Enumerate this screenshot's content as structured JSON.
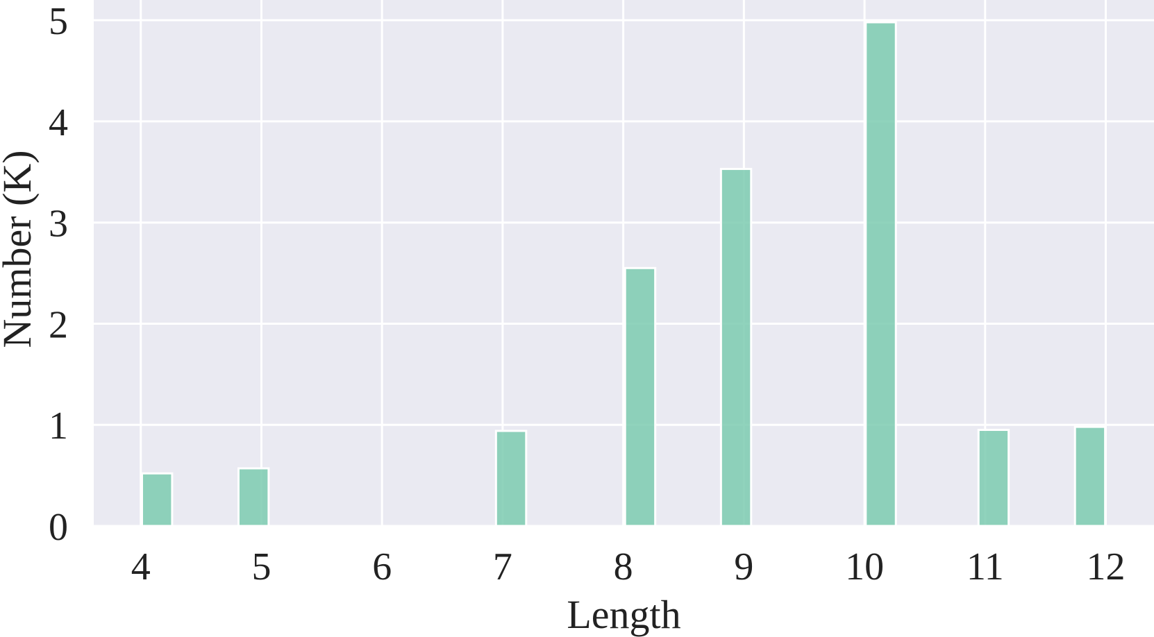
{
  "chart_data": {
    "type": "bar",
    "xlabel": "Length",
    "ylabel": "Number (K)",
    "x_ticks": [
      4,
      5,
      6,
      7,
      8,
      9,
      10,
      11,
      12
    ],
    "y_ticks": [
      0,
      1,
      2,
      3,
      4,
      5
    ],
    "ylim": [
      0,
      5.2
    ],
    "xlim": [
      3.61,
      12.4
    ],
    "grid": true,
    "background": "#eaeaf2",
    "bar_color": "#7ccbb0",
    "bars": [
      {
        "x": 4.135,
        "width": 0.25,
        "value": 0.52
      },
      {
        "x": 4.935,
        "width": 0.25,
        "value": 0.57
      },
      {
        "x": 7.07,
        "width": 0.25,
        "value": 0.94
      },
      {
        "x": 8.14,
        "width": 0.25,
        "value": 2.55
      },
      {
        "x": 8.935,
        "width": 0.25,
        "value": 3.53
      },
      {
        "x": 10.135,
        "width": 0.25,
        "value": 4.98
      },
      {
        "x": 11.07,
        "width": 0.25,
        "value": 0.95
      },
      {
        "x": 11.87,
        "width": 0.25,
        "value": 0.98
      }
    ]
  }
}
